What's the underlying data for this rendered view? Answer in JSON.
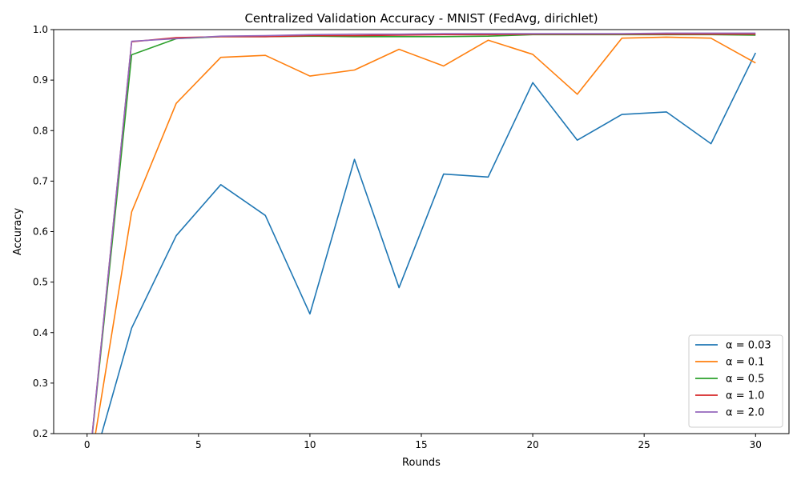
{
  "chart_data": {
    "type": "line",
    "title": "Centralized Validation Accuracy - MNIST (FedAvg, dirichlet)",
    "xlabel": "Rounds",
    "ylabel": "Accuracy",
    "xlim": [
      -1.5,
      31.5
    ],
    "ylim": [
      0.2,
      1.0
    ],
    "xticks": [
      0,
      5,
      10,
      15,
      20,
      25,
      30
    ],
    "yticks": [
      0.2,
      0.3,
      0.4,
      0.5,
      0.6,
      0.7,
      0.8,
      0.9,
      1.0
    ],
    "grid": false,
    "legend_position": "bottom-right",
    "x": [
      0,
      2,
      4,
      6,
      8,
      10,
      12,
      14,
      16,
      18,
      20,
      22,
      24,
      26,
      28,
      30
    ],
    "series": [
      {
        "name": "α = 0.03",
        "color": "#1f77b4",
        "values": [
          0.098,
          0.409,
          0.592,
          0.693,
          0.632,
          0.437,
          0.743,
          0.489,
          0.714,
          0.708,
          0.895,
          0.781,
          0.832,
          0.837,
          0.774,
          0.954
        ]
      },
      {
        "name": "α = 0.1",
        "color": "#ff7f0e",
        "values": [
          0.098,
          0.639,
          0.854,
          0.945,
          0.949,
          0.908,
          0.92,
          0.961,
          0.928,
          0.979,
          0.951,
          0.872,
          0.983,
          0.985,
          0.983,
          0.934
        ]
      },
      {
        "name": "α = 0.5",
        "color": "#2ca02c",
        "values": [
          0.098,
          0.95,
          0.982,
          0.986,
          0.986,
          0.987,
          0.986,
          0.986,
          0.986,
          0.987,
          0.99,
          0.99,
          0.99,
          0.99,
          0.99,
          0.989
        ]
      },
      {
        "name": "α = 1.0",
        "color": "#d62728",
        "values": [
          0.098,
          0.976,
          0.984,
          0.986,
          0.986,
          0.988,
          0.988,
          0.989,
          0.99,
          0.99,
          0.991,
          0.991,
          0.991,
          0.991,
          0.991,
          0.991
        ]
      },
      {
        "name": "α = 2.0",
        "color": "#9467bd",
        "values": [
          0.098,
          0.977,
          0.982,
          0.987,
          0.988,
          0.99,
          0.991,
          0.991,
          0.992,
          0.992,
          0.992,
          0.992,
          0.992,
          0.993,
          0.993,
          0.993
        ]
      }
    ]
  }
}
